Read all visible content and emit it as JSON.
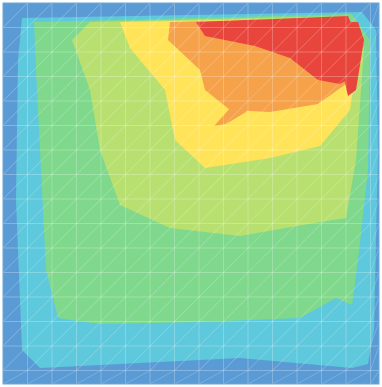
{
  "chart_data": {
    "type": "heatmap",
    "subtype": "filled-contour",
    "title": "",
    "xlabel": "",
    "ylabel": "",
    "colorbar": false,
    "grid": true,
    "mesh": "triangulated",
    "colormap": [
      "#5b9bd5",
      "#5ec8dc",
      "#7fd88c",
      "#b8e070",
      "#ffe45a",
      "#f5a24a",
      "#e8453c"
    ],
    "regions": [
      {
        "level": 0,
        "color": "#5b9bd5"
      },
      {
        "level": 1,
        "color": "#5ec8dc"
      },
      {
        "level": 2,
        "color": "#7fd88c"
      },
      {
        "level": 3,
        "color": "#b8e070"
      },
      {
        "level": 4,
        "color": "#ffe45a"
      },
      {
        "level": 5,
        "color": "#f5a24a"
      },
      {
        "level": 6,
        "color": "#e8453c"
      }
    ]
  }
}
